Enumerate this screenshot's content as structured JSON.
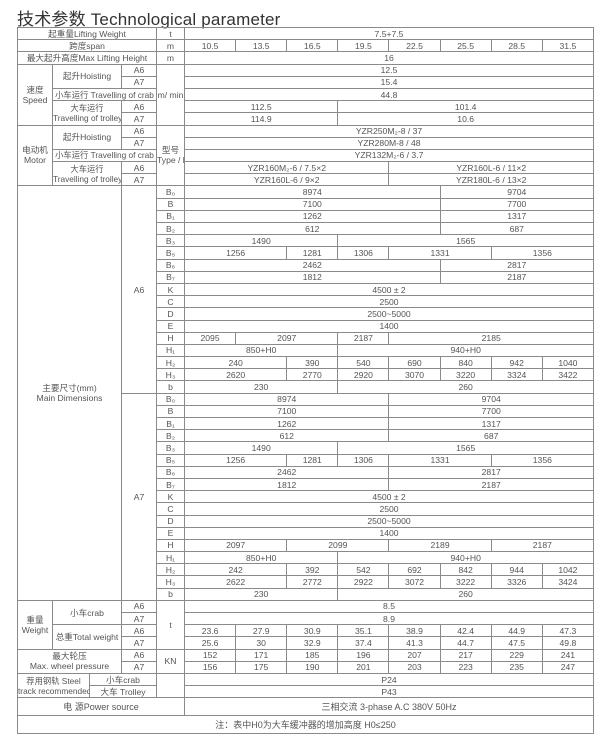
{
  "header": {
    "title": "技术参数 Technological parameter"
  },
  "grades": [
    "A6",
    "A7"
  ],
  "lifting_weight": {
    "label": "起重量Lifting Weight",
    "unit": "t",
    "values": [
      [
        "7.5+7.5",
        8
      ]
    ]
  },
  "span": {
    "label": "跨度span",
    "unit": "m",
    "values": [
      [
        "10.5",
        1
      ],
      [
        "13.5",
        1
      ],
      [
        "16.5",
        1
      ],
      [
        "19.5",
        1
      ],
      [
        "22.5",
        1
      ],
      [
        "25.5",
        1
      ],
      [
        "28.5",
        1
      ],
      [
        "31.5",
        1
      ]
    ]
  },
  "max_height": {
    "label": "最大起升高度Max Lifting Height",
    "unit": "m",
    "values": [
      [
        "16",
        8
      ]
    ]
  },
  "speed": {
    "label_cn": "速度",
    "label_en": "Speed",
    "unit": "m/ min",
    "hoisting_label": "起升Hoisting",
    "crab_label": "小车运行 Travelling of crab",
    "trolley_label_cn": "大车运行",
    "trolley_label_en": "Travelling of trolley",
    "hoisting": {
      "A6": [
        [
          "12.5",
          8
        ]
      ],
      "A7": [
        [
          "15.4",
          8
        ]
      ]
    },
    "crab": [
      [
        "44.8",
        8
      ]
    ],
    "trolley": {
      "A6": [
        [
          "112.5",
          3
        ],
        [
          "101.4",
          5
        ]
      ],
      "A7": [
        [
          "114.9",
          3
        ],
        [
          "10.6",
          5
        ]
      ]
    }
  },
  "motor": {
    "label_cn": "电动机",
    "label_en": "Motor",
    "unit_cn": "型号",
    "unit_en": "Type / kw",
    "hoisting_label": "起升Hoisting",
    "crab_label": "小车运行 Travelling of crab",
    "trolley_label_cn": "大车运行",
    "trolley_label_en": "Travelling of trolley",
    "hoisting": {
      "A6": [
        [
          "YZR250M₂-8 / 37",
          8
        ]
      ],
      "A7": [
        [
          "YZR280M-8 / 48",
          8
        ]
      ]
    },
    "crab": [
      [
        "YZR132M₂-6 / 3.7",
        8
      ]
    ],
    "trolley": {
      "A6": [
        [
          "YZR160M₂-6 / 7.5×2",
          4
        ],
        [
          "YZR160L-6 / 11×2",
          4
        ]
      ],
      "A7": [
        [
          "YZR160L-6 / 9×2",
          4
        ],
        [
          "YZR180L-6 / 13×2",
          4
        ]
      ]
    }
  },
  "dimensions": {
    "label_cn": "主要尺寸(mm)",
    "label_en": "Main Dimensions",
    "A6": [
      {
        "param": "B₀",
        "cells": [
          [
            "8974",
            5
          ],
          [
            "9704",
            3
          ]
        ]
      },
      {
        "param": "B",
        "cells": [
          [
            "7100",
            5
          ],
          [
            "7700",
            3
          ]
        ]
      },
      {
        "param": "B₁",
        "cells": [
          [
            "1262",
            5
          ],
          [
            "1317",
            3
          ]
        ]
      },
      {
        "param": "B₂",
        "cells": [
          [
            "612",
            5
          ],
          [
            "687",
            3
          ]
        ]
      },
      {
        "param": "B₃",
        "cells": [
          [
            "1490",
            3
          ],
          [
            "1565",
            5
          ]
        ]
      },
      {
        "param": "B₅",
        "cells": [
          [
            "1256",
            2
          ],
          [
            "1281",
            1
          ],
          [
            "1306",
            1
          ],
          [
            "1331",
            2
          ],
          [
            "1356",
            2
          ]
        ]
      },
      {
        "param": "B₆",
        "cells": [
          [
            "2462",
            5
          ],
          [
            "2817",
            3
          ]
        ]
      },
      {
        "param": "B₇",
        "cells": [
          [
            "1812",
            5
          ],
          [
            "2187",
            3
          ]
        ]
      },
      {
        "param": "K",
        "cells": [
          [
            "4500 ± 2",
            8
          ]
        ]
      },
      {
        "param": "C",
        "cells": [
          [
            "2500",
            8
          ]
        ]
      },
      {
        "param": "D",
        "cells": [
          [
            "2500~5000",
            8
          ]
        ]
      },
      {
        "param": "E",
        "cells": [
          [
            "1400",
            8
          ]
        ]
      },
      {
        "param": "H",
        "cells": [
          [
            "2095",
            1
          ],
          [
            "2097",
            2
          ],
          [
            "2187",
            1
          ],
          [
            "2185",
            4
          ]
        ]
      },
      {
        "param": "H₁",
        "cells": [
          [
            "850+H0",
            3
          ],
          [
            "940+H0",
            5
          ]
        ]
      },
      {
        "param": "H₂",
        "cells": [
          [
            "240",
            2
          ],
          [
            "390",
            1
          ],
          [
            "540",
            1
          ],
          [
            "690",
            1
          ],
          [
            "840",
            1
          ],
          [
            "942",
            1
          ],
          [
            "1040",
            1
          ]
        ]
      },
      {
        "param": "H₃",
        "cells": [
          [
            "2620",
            2
          ],
          [
            "2770",
            1
          ],
          [
            "2920",
            1
          ],
          [
            "3070",
            1
          ],
          [
            "3220",
            1
          ],
          [
            "3324",
            1
          ],
          [
            "3422",
            1
          ]
        ]
      },
      {
        "param": "b",
        "cells": [
          [
            "230",
            3
          ],
          [
            "260",
            5
          ]
        ]
      }
    ],
    "A7": [
      {
        "param": "B₀",
        "cells": [
          [
            "8974",
            4
          ],
          [
            "9704",
            4
          ]
        ]
      },
      {
        "param": "B",
        "cells": [
          [
            "7100",
            4
          ],
          [
            "7700",
            4
          ]
        ]
      },
      {
        "param": "B₁",
        "cells": [
          [
            "1262",
            4
          ],
          [
            "1317",
            4
          ]
        ]
      },
      {
        "param": "B₂",
        "cells": [
          [
            "612",
            4
          ],
          [
            "687",
            4
          ]
        ]
      },
      {
        "param": "B₃",
        "cells": [
          [
            "1490",
            3
          ],
          [
            "1565",
            5
          ]
        ]
      },
      {
        "param": "B₅",
        "cells": [
          [
            "1256",
            2
          ],
          [
            "1281",
            1
          ],
          [
            "1306",
            1
          ],
          [
            "1331",
            2
          ],
          [
            "1356",
            2
          ]
        ]
      },
      {
        "param": "B₆",
        "cells": [
          [
            "2462",
            4
          ],
          [
            "2817",
            4
          ]
        ]
      },
      {
        "param": "B₇",
        "cells": [
          [
            "1812",
            4
          ],
          [
            "2187",
            4
          ]
        ]
      },
      {
        "param": "K",
        "cells": [
          [
            "4500 ± 2",
            8
          ]
        ]
      },
      {
        "param": "C",
        "cells": [
          [
            "2500",
            8
          ]
        ]
      },
      {
        "param": "D",
        "cells": [
          [
            "2500~5000",
            8
          ]
        ]
      },
      {
        "param": "E",
        "cells": [
          [
            "1400",
            8
          ]
        ]
      },
      {
        "param": "H",
        "cells": [
          [
            "2097",
            2
          ],
          [
            "2099",
            2
          ],
          [
            "2189",
            2
          ],
          [
            "2187",
            2
          ]
        ]
      },
      {
        "param": "H₁",
        "cells": [
          [
            "850+H0",
            3
          ],
          [
            "940+H0",
            5
          ]
        ]
      },
      {
        "param": "H₂",
        "cells": [
          [
            "242",
            2
          ],
          [
            "392",
            1
          ],
          [
            "542",
            1
          ],
          [
            "692",
            1
          ],
          [
            "842",
            1
          ],
          [
            "944",
            1
          ],
          [
            "1042",
            1
          ]
        ]
      },
      {
        "param": "H₃",
        "cells": [
          [
            "2622",
            2
          ],
          [
            "2772",
            1
          ],
          [
            "2922",
            1
          ],
          [
            "3072",
            1
          ],
          [
            "3222",
            1
          ],
          [
            "3326",
            1
          ],
          [
            "3424",
            1
          ]
        ]
      },
      {
        "param": "b",
        "cells": [
          [
            "230",
            3
          ],
          [
            "260",
            5
          ]
        ]
      }
    ]
  },
  "weight": {
    "label_cn": "重量",
    "label_en": "Weight",
    "unit": "t",
    "crab_label": "小车crab",
    "total_label": "总重Total weight",
    "crab": {
      "A6": [
        [
          "8.5",
          8
        ]
      ],
      "A7": [
        [
          "8.9",
          8
        ]
      ]
    },
    "total": {
      "A6": [
        [
          "23.6",
          1
        ],
        [
          "27.9",
          1
        ],
        [
          "30.9",
          1
        ],
        [
          "35.1",
          1
        ],
        [
          "38.9",
          1
        ],
        [
          "42.4",
          1
        ],
        [
          "44.9",
          1
        ],
        [
          "47.3",
          1
        ]
      ],
      "A7": [
        [
          "25.6",
          1
        ],
        [
          "30",
          1
        ],
        [
          "32.9",
          1
        ],
        [
          "37.4",
          1
        ],
        [
          "41.3",
          1
        ],
        [
          "44.7",
          1
        ],
        [
          "47.5",
          1
        ],
        [
          "49.8",
          1
        ]
      ]
    }
  },
  "wheel_pressure": {
    "label_cn": "最大轮压",
    "label_en": "Max.  wheel pressure",
    "unit": "KN",
    "A6": [
      [
        "152",
        1
      ],
      [
        "171",
        1
      ],
      [
        "185",
        1
      ],
      [
        "196",
        1
      ],
      [
        "207",
        1
      ],
      [
        "217",
        1
      ],
      [
        "229",
        1
      ],
      [
        "241",
        1
      ]
    ],
    "A7": [
      [
        "156",
        1
      ],
      [
        "175",
        1
      ],
      [
        "190",
        1
      ],
      [
        "201",
        1
      ],
      [
        "203",
        1
      ],
      [
        "223",
        1
      ],
      [
        "235",
        1
      ],
      [
        "247",
        1
      ]
    ]
  },
  "steel_track": {
    "label_cn": "荐用钢轨 Steel",
    "label_en": "track recommended",
    "crab_label": "小车crab",
    "trolley_label": "大车 Trolley",
    "crab": [
      [
        "P24",
        8
      ]
    ],
    "trolley": [
      [
        "P43",
        8
      ]
    ]
  },
  "power": {
    "label": "电  源Power source",
    "values": [
      [
        "三相交流 3-phase A.C 380V 50Hz",
        8
      ]
    ]
  },
  "note": "注：表中H0为大车缓冲器的增加高度 H0≤250"
}
